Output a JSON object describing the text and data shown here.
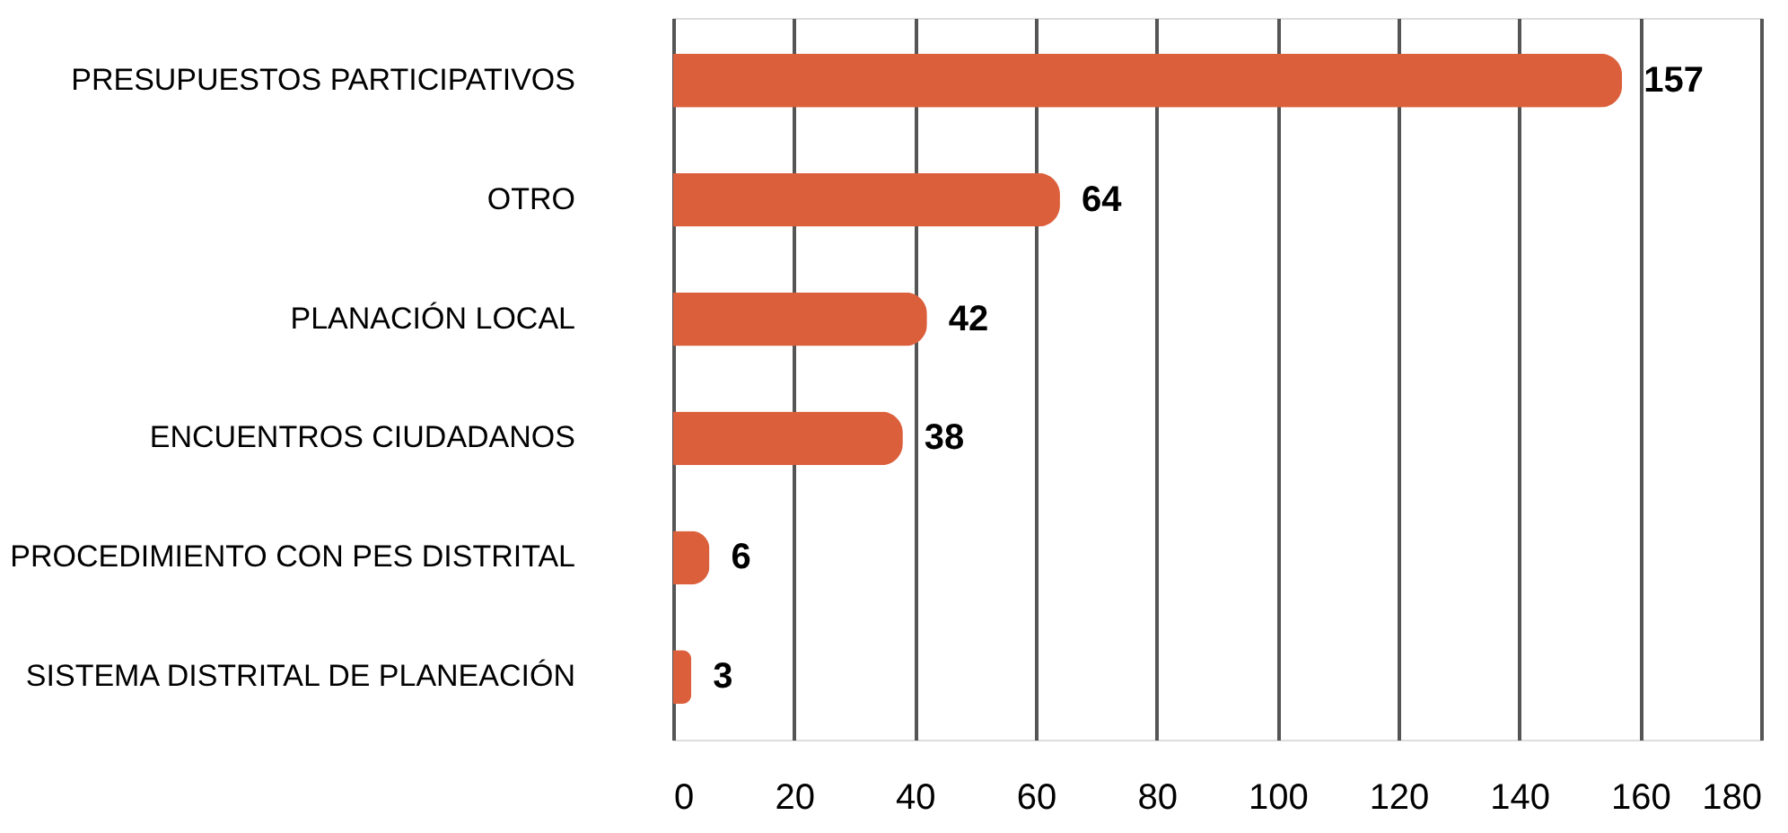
{
  "chart_data": {
    "type": "bar",
    "orientation": "horizontal",
    "categories": [
      "PRESUPUESTOS PARTICIPATIVOS",
      "OTRO",
      "PLANACIÓN LOCAL",
      "ENCUENTROS CIUDADANOS",
      "PROCEDIMIENTO CON PES DISTRITAL",
      "SISTEMA DISTRITAL DE PLANEACIÓN"
    ],
    "values": [
      157,
      64,
      42,
      38,
      6,
      3
    ],
    "color": "#dc5f3c",
    "xlim": [
      0,
      180
    ],
    "xticks": [
      0,
      20,
      40,
      60,
      80,
      100,
      120,
      140,
      160,
      180
    ],
    "grid": "x",
    "data_labels": true
  }
}
